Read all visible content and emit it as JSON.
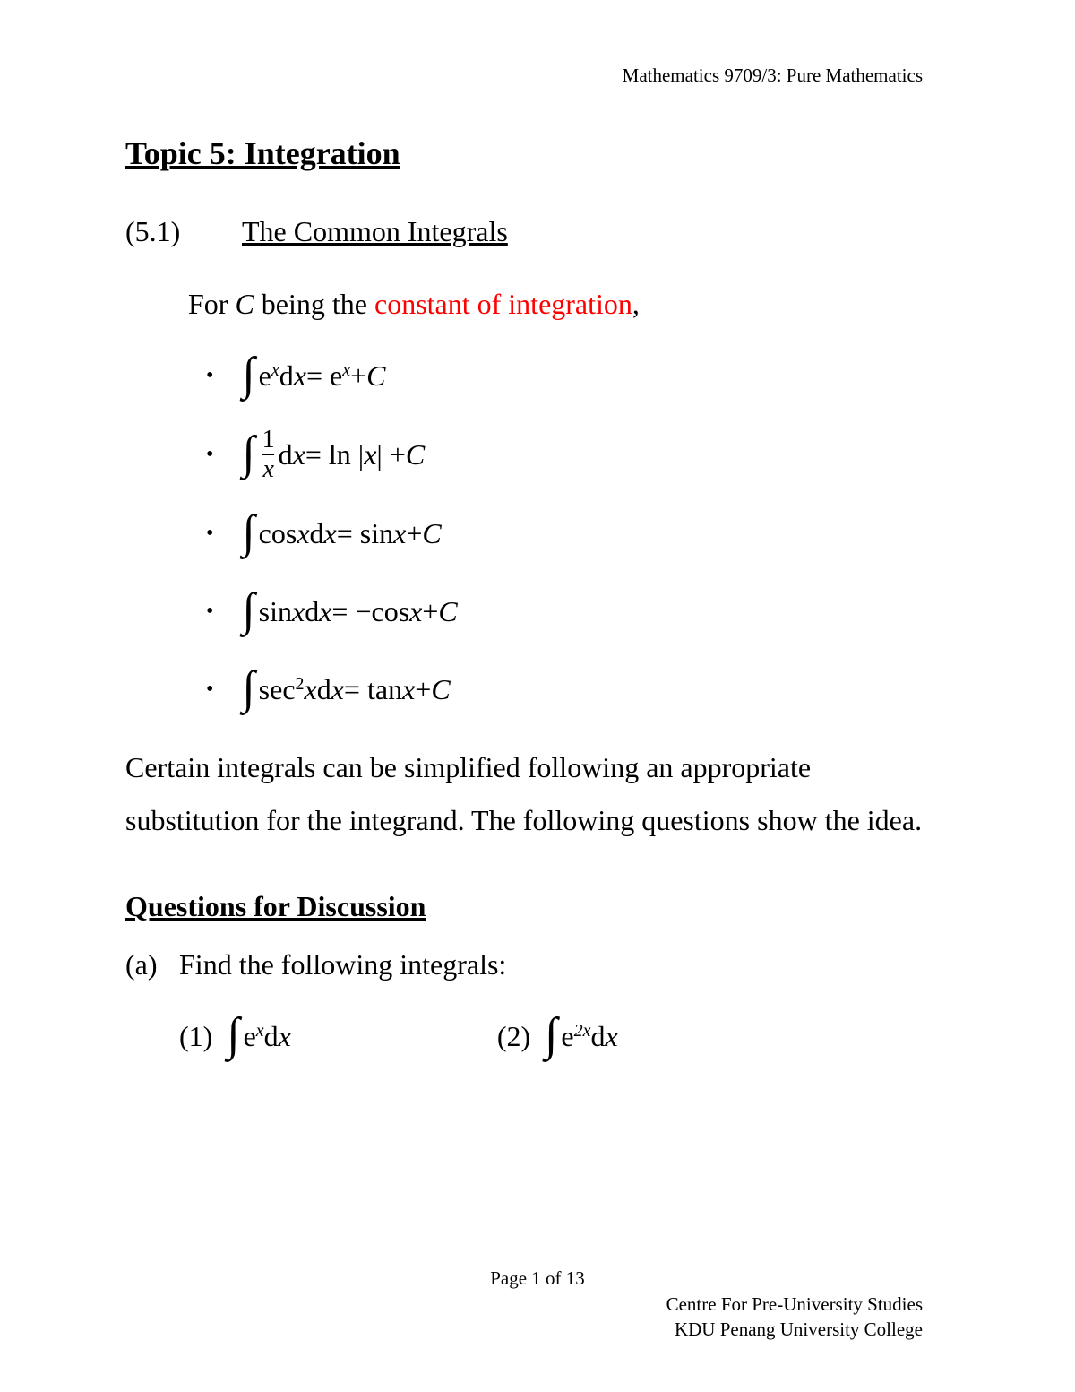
{
  "header": {
    "course": "Mathematics 9709/3: Pure Mathematics"
  },
  "title": "Topic 5: Integration",
  "section": {
    "number": "(5.1)",
    "title": "The Common Integrals"
  },
  "intro": {
    "prefix": "For ",
    "variable": "C",
    "middle": " being the ",
    "highlight": "constant of integration",
    "suffix": ","
  },
  "integrals": [
    {
      "lhs_pre": "e",
      "lhs_sup": "x",
      "lhs_post": " d",
      "lhs_var": "x",
      "rhs": " = e",
      "rhs_sup": "x",
      "rhs_post": " + ",
      "rhs_c": "C"
    },
    {
      "is_frac": true,
      "frac_num": "1",
      "frac_den": "x",
      "lhs_post": " d",
      "lhs_var": "x",
      "rhs": " = ln |",
      "rhs_var": "x",
      "rhs_post": "| + ",
      "rhs_c": "C"
    },
    {
      "lhs_func": "cos ",
      "lhs_var1": "x",
      "lhs_post": " d",
      "lhs_var": "x",
      "rhs": "  = sin ",
      "rhs_var": "x",
      "rhs_post": " + ",
      "rhs_c": "C"
    },
    {
      "lhs_func": "sin ",
      "lhs_var1": "x",
      "lhs_post": " d",
      "lhs_var": "x",
      "rhs": "  =  −cos ",
      "rhs_var": "x",
      "rhs_post": " + ",
      "rhs_c": "C"
    },
    {
      "lhs_func": "sec",
      "lhs_sup": "2",
      "lhs_var1": "x",
      "lhs_post": " d",
      "lhs_var": "x",
      "rhs": " = tan ",
      "rhs_var": "x",
      "rhs_post": " + ",
      "rhs_c": "C"
    }
  ],
  "body": "Certain integrals can be simplified following an appropriate substitution for the integrand. The following questions show the idea.",
  "subsection": "Questions for Discussion",
  "question": {
    "label": "(a)",
    "text": "Find the following integrals:"
  },
  "subquestions": [
    {
      "label": "(1)",
      "base": "e",
      "sup": "x",
      "post": " d",
      "var": "x"
    },
    {
      "label": "(2)",
      "base": "e",
      "sup": "2x",
      "post": " d",
      "var": "x"
    }
  ],
  "footer": {
    "page": "Page 1 of 13",
    "line1": "Centre For Pre-University Studies",
    "line2": "KDU Penang University College"
  }
}
